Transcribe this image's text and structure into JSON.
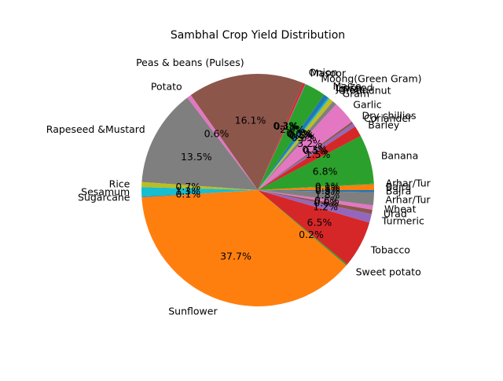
{
  "chart_data": {
    "type": "pie",
    "title": "Sambhal Crop Yield Distribution",
    "start_angle_deg": 0,
    "direction": "counterclockwise",
    "slices": [
      {
        "label": "Bajra",
        "value": 0.8,
        "pct_text": "0.8%",
        "color": "#ff7f0e"
      },
      {
        "label": "Arhar/Tur",
        "value": 0.1,
        "pct_text": "0.1%",
        "color": "#2ca02c"
      },
      {
        "label": "Banana",
        "value": 6.8,
        "pct_text": "6.8%",
        "color": "#2ca02c"
      },
      {
        "label": "Barley",
        "value": 1.5,
        "pct_text": "1.5%",
        "color": "#d62728"
      },
      {
        "label": "Coriander",
        "value": 0.5,
        "pct_text": "0.5%",
        "color": "#9467bd"
      },
      {
        "label": "Dry chillies",
        "value": 0.3,
        "pct_text": "0.3%",
        "color": "#8c564b"
      },
      {
        "label": "Garlic",
        "value": 3.2,
        "pct_text": "3.2%",
        "color": "#e377c2"
      },
      {
        "label": "Gram",
        "value": 0.6,
        "pct_text": "0.6%",
        "color": "#7f7f7f"
      },
      {
        "label": "Groundnut",
        "value": 0.6,
        "pct_text": "0.6%",
        "color": "#bcbd22"
      },
      {
        "label": "Jowar",
        "value": 0.2,
        "pct_text": "0.2%",
        "color": "#17becf"
      },
      {
        "label": "Linseed",
        "value": 0.1,
        "pct_text": "0.1%",
        "color": "#1f77b4"
      },
      {
        "label": "Maize",
        "value": 0.6,
        "pct_text": "0.6%",
        "color": "#1f77b4"
      },
      {
        "label": "Moong(Green Gram)",
        "value": 2.9,
        "pct_text": "2.9%",
        "color": "#2ca02c"
      },
      {
        "label": "Masoor",
        "value": 0.1,
        "pct_text": "0.1%",
        "color": "#9467bd"
      },
      {
        "label": "Onion",
        "value": 0.3,
        "pct_text": "0.3%",
        "color": "#d62728"
      },
      {
        "label": "Peas & beans (Pulses)",
        "value": 16.1,
        "pct_text": "16.1%",
        "color": "#8c564b"
      },
      {
        "label": "Potato",
        "value": 0.6,
        "pct_text": "0.6%",
        "color": "#e377c2"
      },
      {
        "label": "Rapeseed &Mustard",
        "value": 13.5,
        "pct_text": "13.5%",
        "color": "#7f7f7f"
      },
      {
        "label": "Rice",
        "value": 0.7,
        "pct_text": "0.7%",
        "color": "#bcbd22"
      },
      {
        "label": "Sesamum",
        "value": 1.3,
        "pct_text": "1.3%",
        "color": "#17becf"
      },
      {
        "label": "Sugarcane",
        "value": 0.1,
        "pct_text": "0.1%",
        "color": "#1f77b4"
      },
      {
        "label": "Sunflower",
        "value": 37.7,
        "pct_text": "37.7%",
        "color": "#ff7f0e"
      },
      {
        "label": "Sweet potato",
        "value": 0.2,
        "pct_text": "0.2%",
        "color": "#2ca02c"
      },
      {
        "label": "Tobacco",
        "value": 6.5,
        "pct_text": "6.5%",
        "color": "#d62728"
      },
      {
        "label": "Turmeric",
        "value": 1.2,
        "pct_text": "1.2%",
        "color": "#9467bd"
      },
      {
        "label": "Urad",
        "value": 0.6,
        "pct_text": "0.6%",
        "color": "#8c564b"
      },
      {
        "label": "Wheat",
        "value": 0.6,
        "pct_text": "0.6%",
        "color": "#e377c2"
      },
      {
        "label": "Arhar/Tur",
        "value": 1.8,
        "pct_text": "1.8%",
        "color": "#7f7f7f"
      },
      {
        "label": "Bajra",
        "value": 0.3,
        "pct_text": "0.3%",
        "color": "#1f77b4"
      }
    ]
  }
}
